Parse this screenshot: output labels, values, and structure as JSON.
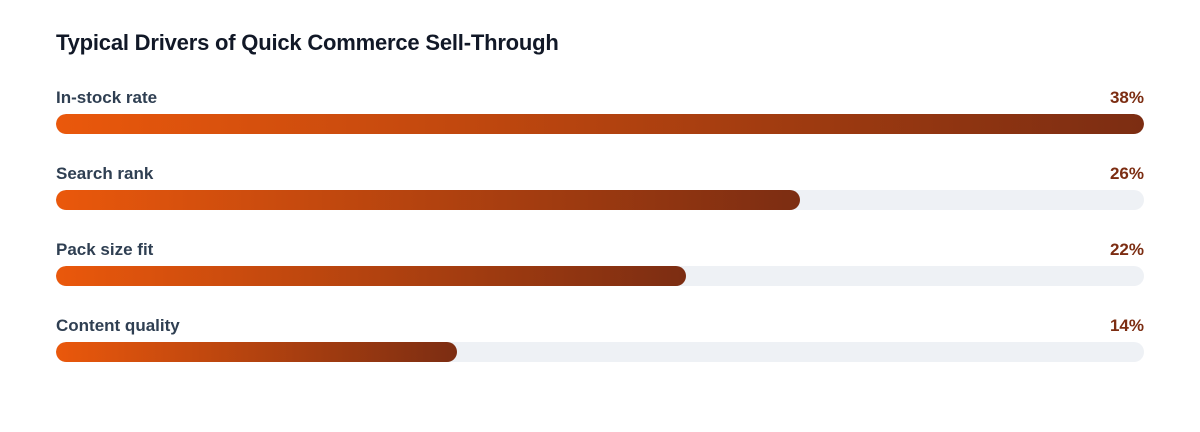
{
  "chart_data": {
    "type": "bar",
    "orientation": "horizontal",
    "title": "Typical Drivers of Quick Commerce Sell-Through",
    "categories": [
      "In-stock rate",
      "Search rank",
      "Pack size fit",
      "Content quality"
    ],
    "values": [
      38,
      26,
      22,
      14
    ],
    "value_labels": [
      "38%",
      "26%",
      "22%",
      "14%"
    ],
    "unit": "%",
    "max_reference": 38,
    "grid": false,
    "legend": "none",
    "colors": {
      "bar_start": "#ea580c",
      "bar_end": "#7c2d12",
      "track": "#eef1f5",
      "value_text": "#7c2d12",
      "label_text": "#2f3f52",
      "title_text": "#111827"
    }
  }
}
